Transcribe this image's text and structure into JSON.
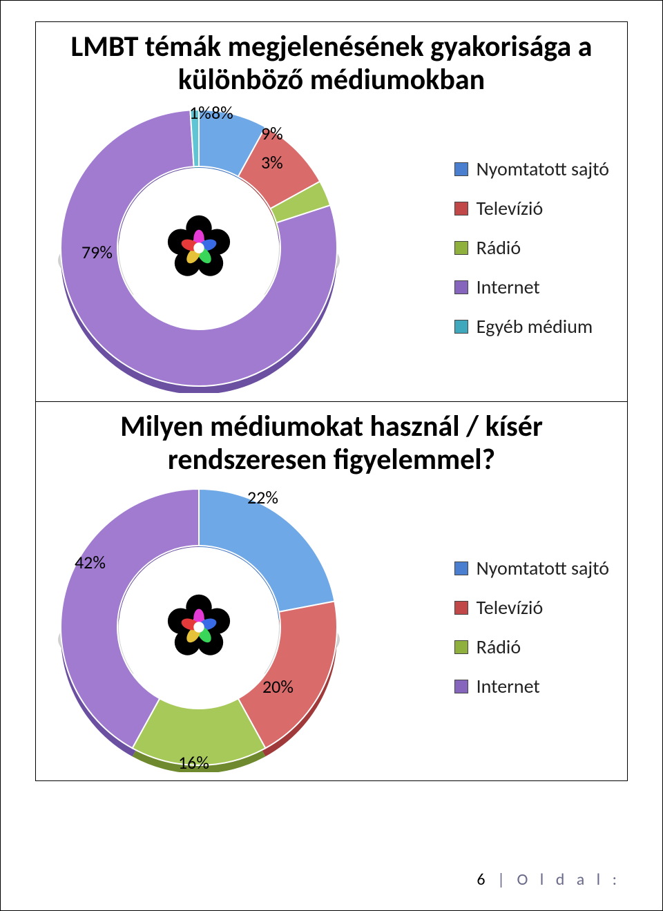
{
  "chart1": {
    "type": "donut",
    "title": "LMBT témák megjelenésének gyakorisága a különböző médiumokban",
    "background_color": "#ffffff",
    "title_fontsize": 42,
    "title_fontweight": 700,
    "slices": [
      {
        "label": "Nyomtatott sajtó",
        "value": 8,
        "pct": "8%",
        "color_light": "#6fa8e6",
        "color_dark": "#3f74c2"
      },
      {
        "label": "Televízió",
        "value": 9,
        "pct": "9%",
        "color_light": "#d96b6b",
        "color_dark": "#a03a3a"
      },
      {
        "label": "Rádió",
        "value": 3,
        "pct": "3%",
        "color_light": "#a7c95a",
        "color_dark": "#6f8a2e"
      },
      {
        "label": "Internet",
        "value": 79,
        "pct": "79%",
        "color_light": "#a07bd0",
        "color_dark": "#6b4fa0"
      },
      {
        "label": "Egyéb médium",
        "value": 1,
        "pct": "1%",
        "color_light": "#5fc4d4",
        "color_dark": "#2e8fa0"
      }
    ],
    "label_fontsize": 26,
    "legend_fontsize": 28,
    "donut_outer_radius": 200,
    "donut_inner_radius": 118,
    "hole_color": "#ffffff"
  },
  "chart2": {
    "type": "donut",
    "title": "Milyen médiumokat használ / kísér rendszeresen figyelemmel?",
    "background_color": "#ffffff",
    "title_fontsize": 42,
    "title_fontweight": 700,
    "slices": [
      {
        "label": "Nyomtatott sajtó",
        "value": 22,
        "pct": "22%",
        "color_light": "#6fa8e6",
        "color_dark": "#3f74c2"
      },
      {
        "label": "Televízió",
        "value": 20,
        "pct": "20%",
        "color_light": "#d96b6b",
        "color_dark": "#a03a3a"
      },
      {
        "label": "Rádió",
        "value": 16,
        "pct": "16%",
        "color_light": "#a7c95a",
        "color_dark": "#6f8a2e"
      },
      {
        "label": "Internet",
        "value": 42,
        "pct": "42%",
        "color_light": "#a07bd0",
        "color_dark": "#6b4fa0"
      }
    ],
    "label_fontsize": 26,
    "legend_fontsize": 28,
    "donut_outer_radius": 200,
    "donut_inner_radius": 118,
    "hole_color": "#ffffff"
  },
  "footer": {
    "page_number": "6",
    "page_word": "O l d a l :"
  }
}
